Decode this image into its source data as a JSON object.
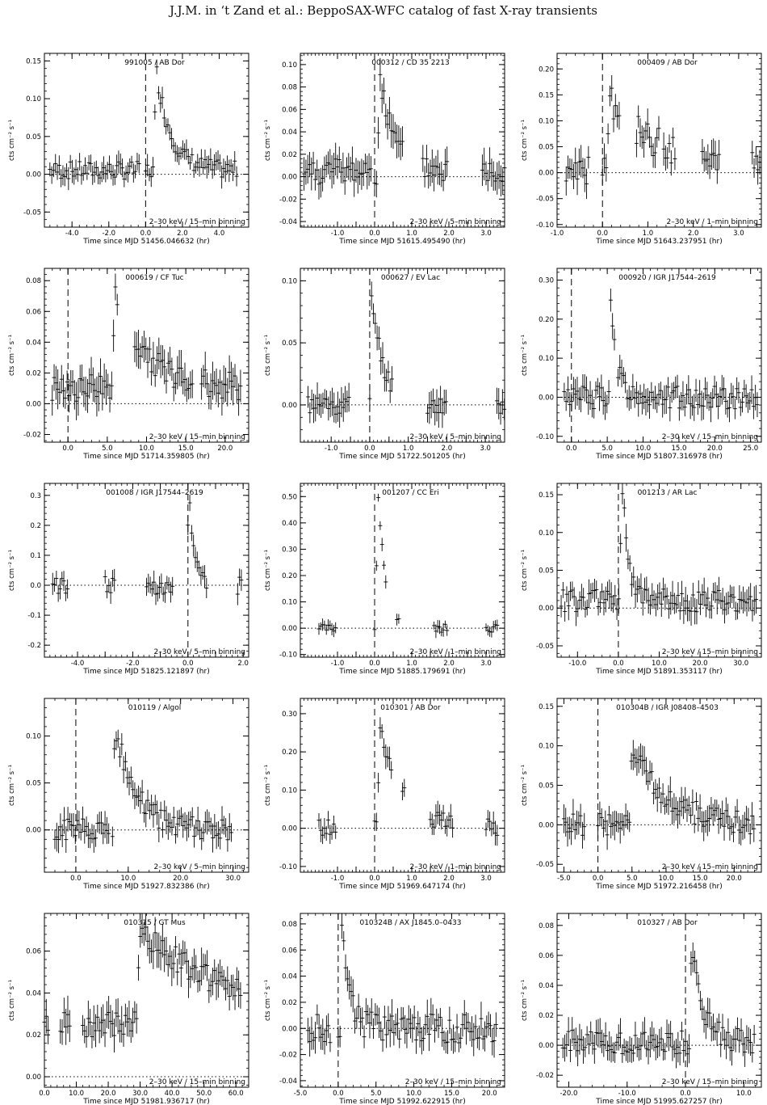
{
  "header": {
    "running_head": "J.J.M. in ‘t Zand et al.: BeppoSAX-WFC catalog of fast X-ray transients"
  },
  "chart_data": [
    {
      "type": "scatter",
      "title": "991005 / AB Dor",
      "xlabel": "Time since MJD 51456.046632 (hr)",
      "ylabel": "cts cm⁻² s⁻¹",
      "xlim": [
        -5.5,
        5.6
      ],
      "ylim": [
        -0.07,
        0.16
      ],
      "xticks": [
        -4,
        -2,
        0,
        2,
        4
      ],
      "xtick_labels": [
        "-4.0",
        "-2.0",
        "0.0",
        "2.0",
        "4.0"
      ],
      "yticks": [
        -0.05,
        0,
        0.05,
        0.1,
        0.15
      ],
      "ytick_labels": [
        "-0.05",
        "0.00",
        "0.05",
        "0.10",
        "0.15"
      ],
      "annotation": "2–30 keV / 15–min binning",
      "segments": [
        [
          -5.2,
          -0.3
        ],
        [
          0.0,
          5.0
        ]
      ],
      "burst": [
        0.6,
        0.13
      ],
      "decay": 0.8,
      "noise": 0.012,
      "base": 0.005,
      "err": 0.012
    },
    {
      "type": "scatter",
      "title": "000312 / CD 35 2213",
      "xlabel": "Time since MJD 51615.495490 (hr)",
      "ylabel": "cts cm⁻² s⁻¹",
      "xlim": [
        -2.0,
        3.5
      ],
      "ylim": [
        -0.045,
        0.11
      ],
      "xticks": [
        -1,
        -0.5,
        0,
        0.5,
        1,
        1.5,
        2,
        2.5,
        3
      ],
      "xtick_labels": [
        "-1.0",
        "",
        "0.0",
        "",
        "1.0",
        "",
        "2.0",
        "",
        "3.0"
      ],
      "yticks": [
        -0.04,
        -0.02,
        0,
        0.02,
        0.04,
        0.06,
        0.08,
        0.1
      ],
      "ytick_labels": [
        "-0.04",
        "-0.02",
        "0.00",
        "0.02",
        "0.04",
        "0.06",
        "0.08",
        "0.10"
      ],
      "annotation": "2–30 keV / 5–min binning",
      "segments": [
        [
          -1.9,
          -0.05
        ],
        [
          0.0,
          0.8
        ],
        [
          1.3,
          2.0
        ],
        [
          2.9,
          3.5
        ]
      ],
      "burst": [
        0.15,
        0.085
      ],
      "decay": 0.35,
      "noise": 0.012,
      "base": 0.005,
      "err": 0.012
    },
    {
      "type": "scatter",
      "title": "000409 / AB Dor",
      "xlabel": "Time since MJD 51643.237951 (hr)",
      "ylabel": "cts cm⁻² s⁻¹",
      "xlim": [
        -1.0,
        3.5
      ],
      "ylim": [
        -0.105,
        0.23
      ],
      "xticks": [
        -1,
        0,
        1,
        2,
        3
      ],
      "xtick_labels": [
        "-1.0",
        "0.0",
        "1.0",
        "2.0",
        "3.0"
      ],
      "yticks": [
        -0.1,
        -0.05,
        0,
        0.05,
        0.1,
        0.15,
        0.2
      ],
      "ytick_labels": [
        "-0.10",
        "-0.05",
        "0.00",
        "0.05",
        "0.10",
        "0.15",
        "0.20"
      ],
      "annotation": "2–30 keV / 1–min binning",
      "segments": [
        [
          -0.8,
          -0.3
        ],
        [
          0.0,
          0.4
        ],
        [
          0.75,
          1.25
        ],
        [
          1.35,
          1.6
        ],
        [
          2.2,
          2.6
        ],
        [
          3.3,
          3.5
        ]
      ],
      "burst": [
        0.15,
        0.14
      ],
      "decay": 1.2,
      "noise": 0.03,
      "base": 0.0,
      "err": 0.025
    },
    {
      "type": "scatter",
      "title": "000619 / CF Tuc",
      "xlabel": "Time since MJD 51714.359805 (hr)",
      "ylabel": "cts cm⁻² s⁻¹",
      "xlim": [
        -3.0,
        23.0
      ],
      "ylim": [
        -0.025,
        0.088
      ],
      "xticks": [
        0,
        5,
        10,
        15,
        20
      ],
      "xtick_labels": [
        "0.0",
        "5.0",
        "10.0",
        "15.0",
        "20.0"
      ],
      "yticks": [
        -0.02,
        0,
        0.02,
        0.04,
        0.06,
        0.08
      ],
      "ytick_labels": [
        "-0.02",
        "0.00",
        "0.02",
        "0.04",
        "0.06",
        "0.08"
      ],
      "annotation": "2–30 keV / 15–min binning",
      "segments": [
        [
          -2.0,
          6.5
        ],
        [
          8.5,
          16.0
        ],
        [
          17.0,
          22.0
        ]
      ],
      "burst": [
        6.0,
        0.06
      ],
      "decay": 4.0,
      "noise": 0.009,
      "base": 0.01,
      "err": 0.01
    },
    {
      "type": "scatter",
      "title": "000627 / EV Lac",
      "xlabel": "Time since MJD 51722.501205 (hr)",
      "ylabel": "cts cm⁻² s⁻¹",
      "xlim": [
        -1.8,
        3.5
      ],
      "ylim": [
        -0.03,
        0.11
      ],
      "xticks": [
        -1,
        -0.5,
        0,
        0.5,
        1,
        1.5,
        2,
        2.5,
        3
      ],
      "xtick_labels": [
        "-1.0",
        "",
        "0.0",
        "",
        "1.0",
        "",
        "2.0",
        "",
        "3.0"
      ],
      "yticks": [
        0,
        0.05,
        0.1
      ],
      "ytick_labels": [
        "0.00",
        "0.05",
        "0.10"
      ],
      "annotation": "2–30 keV / 5–min binning",
      "segments": [
        [
          -1.6,
          -0.5
        ],
        [
          0.0,
          0.6
        ],
        [
          1.5,
          2.0
        ],
        [
          3.3,
          3.5
        ]
      ],
      "burst": [
        0.05,
        0.09
      ],
      "decay": 0.3,
      "noise": 0.008,
      "base": 0.0,
      "err": 0.01
    },
    {
      "type": "scatter",
      "title": "000920 / IGR J17544–2619",
      "xlabel": "Time since MJD 51807.316978 (hr)",
      "ylabel": "cts cm⁻² s⁻¹",
      "xlim": [
        -2.0,
        26.5
      ],
      "ylim": [
        -0.115,
        0.33
      ],
      "xticks": [
        0,
        5,
        10,
        15,
        20,
        25
      ],
      "xtick_labels": [
        "0.0",
        "5.0",
        "10.0",
        "15.0",
        "20.0",
        "25.0"
      ],
      "yticks": [
        -0.1,
        0,
        0.1,
        0.2,
        0.3
      ],
      "ytick_labels": [
        "-0.10",
        "0.00",
        "0.10",
        "0.20",
        "0.30"
      ],
      "annotation": "2–30 keV / 15–min binning",
      "segments": [
        [
          -1.0,
          4.5
        ],
        [
          4.7,
          6.0
        ],
        [
          6.5,
          26.0
        ]
      ],
      "burst": [
        5.5,
        0.28
      ],
      "decay": 0.8,
      "noise": 0.03,
      "base": 0.0,
      "err": 0.03
    },
    {
      "type": "scatter",
      "title": "001008 / IGR J17544–2619",
      "xlabel": "Time since MJD 51825.121897 (hr)",
      "ylabel": "cts cm⁻² s⁻¹",
      "xlim": [
        -5.2,
        2.2
      ],
      "ylim": [
        -0.24,
        0.34
      ],
      "xticks": [
        -4,
        -3,
        -2,
        -1,
        0,
        1,
        2
      ],
      "xtick_labels": [
        "-4.0",
        "",
        "-2.0",
        "",
        "0.0",
        "",
        "2.0"
      ],
      "yticks": [
        -0.2,
        -0.1,
        0,
        0.1,
        0.2,
        0.3
      ],
      "ytick_labels": [
        "-0.2",
        "-0.1",
        "0.0",
        "0.1",
        "0.2",
        "0.3"
      ],
      "annotation": "2–30 keV / 5–min binning",
      "segments": [
        [
          -4.9,
          -4.3
        ],
        [
          -3.0,
          -2.6
        ],
        [
          -1.5,
          -0.5
        ],
        [
          0.0,
          0.7
        ],
        [
          1.8,
          2.0
        ]
      ],
      "burst": [
        0.05,
        0.28
      ],
      "decay": 0.2,
      "noise": 0.03,
      "base": 0.0,
      "err": 0.03
    },
    {
      "type": "scatter",
      "title": "001207 / CC Eri",
      "xlabel": "Time since MJD 51885.179691 (hr)",
      "ylabel": "cts cm⁻² s⁻¹",
      "xlim": [
        -2.0,
        3.5
      ],
      "ylim": [
        -0.11,
        0.55
      ],
      "xticks": [
        -1,
        -0.5,
        0,
        0.5,
        1,
        1.5,
        2,
        2.5,
        3
      ],
      "xtick_labels": [
        "-1.0",
        "",
        "0.0",
        "",
        "1.0",
        "",
        "2.0",
        "",
        "3.0"
      ],
      "yticks": [
        -0.1,
        0,
        0.1,
        0.2,
        0.3,
        0.4,
        0.5
      ],
      "ytick_labels": [
        "-0.10",
        "0.00",
        "0.10",
        "0.20",
        "0.30",
        "0.40",
        "0.50"
      ],
      "annotation": "2–30 keV / 1–min binning",
      "segments": [
        [
          -1.5,
          -1.0
        ],
        [
          0.0,
          0.3
        ],
        [
          0.6,
          0.65
        ],
        [
          1.6,
          2.0
        ],
        [
          3.0,
          3.3
        ]
      ],
      "burst": [
        0.1,
        0.5
      ],
      "decay": 0.2,
      "noise": 0.015,
      "base": 0.0,
      "err": 0.02
    },
    {
      "type": "scatter",
      "title": "001213 / AR Lac",
      "xlabel": "Time since MJD 51891.353117 (hr)",
      "ylabel": "cts cm⁻² s⁻¹",
      "xlim": [
        -15.0,
        35.0
      ],
      "ylim": [
        -0.065,
        0.165
      ],
      "xticks": [
        -10,
        0,
        10,
        20,
        30
      ],
      "xtick_labels": [
        "-10.0",
        "0.0",
        "10.0",
        "20.0",
        "30.0"
      ],
      "yticks": [
        -0.05,
        0,
        0.05,
        0.1,
        0.15
      ],
      "ytick_labels": [
        "-0.05",
        "0.00",
        "0.05",
        "0.10",
        "0.15"
      ],
      "annotation": "2–30 keV / 15–min binning",
      "segments": [
        [
          -14.0,
          34.0
        ]
      ],
      "burst": [
        1.0,
        0.15
      ],
      "decay": 1.5,
      "noise": 0.015,
      "base": 0.01,
      "err": 0.015
    },
    {
      "type": "scatter",
      "title": "010119 / Algol",
      "xlabel": "Time since MJD 51927.832386 (hr)",
      "ylabel": "cts cm⁻² s⁻¹",
      "xlim": [
        -6.0,
        33.0
      ],
      "ylim": [
        -0.045,
        0.14
      ],
      "xticks": [
        0,
        10,
        20,
        30
      ],
      "xtick_labels": [
        "0.0",
        "10.0",
        "20.0",
        "30.0"
      ],
      "yticks": [
        0,
        0.05,
        0.1
      ],
      "ytick_labels": [
        "0.00",
        "0.05",
        "0.10"
      ],
      "annotation": "2–30 keV / 5–min binning",
      "segments": [
        [
          -4.0,
          6.5
        ],
        [
          7.0,
          30.0
        ]
      ],
      "burst": [
        7.5,
        0.11
      ],
      "decay": 4.0,
      "noise": 0.012,
      "base": 0.0,
      "err": 0.012
    },
    {
      "type": "scatter",
      "title": "010301 / AB Dor",
      "xlabel": "Time since MJD 51969.647174 (hr)",
      "ylabel": "cts cm⁻² s⁻¹",
      "xlim": [
        -2.0,
        3.5
      ],
      "ylim": [
        -0.115,
        0.34
      ],
      "xticks": [
        -1,
        -0.5,
        0,
        0.5,
        1,
        1.5,
        2,
        2.5,
        3
      ],
      "xtick_labels": [
        "-1.0",
        "",
        "0.0",
        "",
        "1.0",
        "",
        "2.0",
        "",
        "3.0"
      ],
      "yticks": [
        -0.1,
        0,
        0.1,
        0.2,
        0.3
      ],
      "ytick_labels": [
        "-0.10",
        "0.00",
        "0.10",
        "0.20",
        "0.30"
      ],
      "annotation": "2–30 keV / 1–min binning",
      "segments": [
        [
          -1.5,
          -1.0
        ],
        [
          0.0,
          0.45
        ],
        [
          0.75,
          0.8
        ],
        [
          1.5,
          2.1
        ],
        [
          3.0,
          3.3
        ]
      ],
      "burst": [
        0.15,
        0.27
      ],
      "decay": 0.6,
      "noise": 0.025,
      "base": 0.0,
      "err": 0.025
    },
    {
      "type": "scatter",
      "title": "010304B / IGR J08408–4503",
      "xlabel": "Time since MJD 51972.216458 (hr)",
      "ylabel": "cts cm⁻² s⁻¹",
      "xlim": [
        -6.0,
        24.0
      ],
      "ylim": [
        -0.06,
        0.16
      ],
      "xticks": [
        -5,
        0,
        5,
        10,
        15,
        20
      ],
      "xtick_labels": [
        "-5.0",
        "0.0",
        "5.0",
        "10.0",
        "15.0",
        "20.0"
      ],
      "yticks": [
        -0.05,
        0,
        0.05,
        0.1,
        0.15
      ],
      "ytick_labels": [
        "-0.05",
        "0.00",
        "0.05",
        "0.10",
        "0.15"
      ],
      "annotation": "2–30 keV / 15–min binning",
      "segments": [
        [
          -5.0,
          -2.0
        ],
        [
          0.0,
          23.0
        ]
      ],
      "burst": [
        5.0,
        0.1
      ],
      "decay": 5.0,
      "noise": 0.015,
      "base": 0.0,
      "err": 0.015
    },
    {
      "type": "scatter",
      "title": "010315 / GT Mus",
      "xlabel": "Time since MJD 51981.936717 (hr)",
      "ylabel": "cts cm⁻² s⁻¹",
      "xlim": [
        0.0,
        64.0
      ],
      "ylim": [
        -0.005,
        0.078
      ],
      "xticks": [
        0,
        10,
        20,
        30,
        40,
        50,
        60
      ],
      "xtick_labels": [
        "0.0",
        "10.0",
        "20.0",
        "30.0",
        "40.0",
        "50.0",
        "60.0"
      ],
      "yticks": [
        0,
        0.02,
        0.04,
        0.06
      ],
      "ytick_labels": [
        "0.00",
        "0.02",
        "0.04",
        "0.06"
      ],
      "annotation": "2–30 keV / 15–min binning",
      "segments": [
        [
          0.0,
          1.5
        ],
        [
          5.0,
          8.0
        ],
        [
          12.0,
          62.0
        ]
      ],
      "burst": [
        30.0,
        0.045
      ],
      "decay": 30.0,
      "noise": 0.006,
      "base": 0.025,
      "err": 0.007
    },
    {
      "type": "scatter",
      "title": "010324B / AX J1845.0–0433",
      "xlabel": "Time since MJD 51992.622915 (hr)",
      "ylabel": "cts cm⁻² s⁻¹",
      "xlim": [
        -5.0,
        22.0
      ],
      "ylim": [
        -0.045,
        0.088
      ],
      "xticks": [
        -5,
        0,
        5,
        10,
        15,
        20
      ],
      "xtick_labels": [
        "-5.0",
        "0.0",
        "5.0",
        "10.0",
        "15.0",
        "20.0"
      ],
      "yticks": [
        -0.04,
        -0.02,
        0,
        0.02,
        0.04,
        0.06,
        0.08
      ],
      "ytick_labels": [
        "-0.04",
        "-0.02",
        "0.00",
        "0.02",
        "0.04",
        "0.06",
        "0.08"
      ],
      "annotation": "2–30 keV / 15–min binning",
      "segments": [
        [
          -4.0,
          -1.0
        ],
        [
          0.0,
          21.0
        ]
      ],
      "burst": [
        0.5,
        0.075
      ],
      "decay": 1.0,
      "noise": 0.011,
      "base": 0.0,
      "err": 0.01
    },
    {
      "type": "scatter",
      "title": "010327 / AB Dor",
      "xlabel": "Time since MJD 51995.627257 (hr)",
      "ylabel": "cts cm⁻² s⁻¹",
      "xlim": [
        -22.0,
        13.0
      ],
      "ylim": [
        -0.028,
        0.088
      ],
      "xticks": [
        -20,
        -10,
        0,
        10
      ],
      "xtick_labels": [
        "-20.0",
        "-10.0",
        "0.0",
        "10.0"
      ],
      "yticks": [
        -0.02,
        0,
        0.02,
        0.04,
        0.06,
        0.08
      ],
      "ytick_labels": [
        "-0.02",
        "0.00",
        "0.02",
        "0.04",
        "0.06",
        "0.08"
      ],
      "annotation": "2–30 keV / 15–min binning",
      "segments": [
        [
          -21.0,
          12.0
        ]
      ],
      "burst": [
        1.0,
        0.065
      ],
      "decay": 2.0,
      "noise": 0.008,
      "base": 0.002,
      "err": 0.008
    }
  ]
}
